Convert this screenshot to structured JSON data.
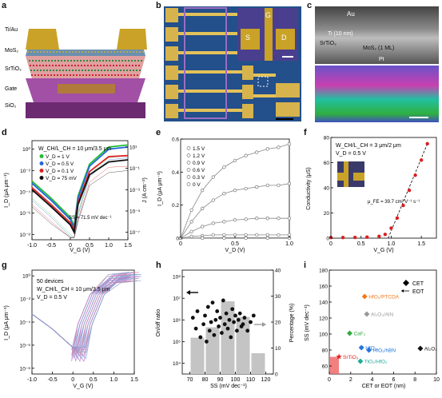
{
  "panel_labels": {
    "a": "a",
    "b": "b",
    "c": "c",
    "d": "d",
    "e": "e",
    "f": "f",
    "g": "g",
    "h": "h",
    "i": "i"
  },
  "panel_a": {
    "layers": [
      "Ti/Au",
      "MoS₂",
      "SrTiO₃",
      "Gate",
      "SiO₂"
    ],
    "colors": {
      "au": "#c9a227",
      "mos2": "#6c8fb0",
      "srtio3": "#d98a8a",
      "gate": "#b07a3c",
      "sio2": "#8a3f8f"
    }
  },
  "panel_b": {
    "inset_labels": {
      "gate": "G",
      "source": "S",
      "drain": "D"
    }
  },
  "panel_c": {
    "labels": {
      "au": "Au",
      "ti": "Ti (10 nm)",
      "srtio3": "SrTiO₃",
      "mos2": "MoS₂ (1 ML)",
      "pt": "Pt"
    }
  },
  "chart_data": [
    {
      "panel": "d",
      "type": "line",
      "xlabel": "V_G (V)",
      "ylabel": "I_D (μA μm⁻¹)",
      "y2label": "J (A cm⁻²)",
      "xlim": [
        -1.0,
        1.5
      ],
      "xticks": [
        "-1.0",
        "-0.5",
        "0",
        "0.5",
        "1.0",
        "1.5"
      ],
      "yticks_left": [
        "10⁰",
        "10⁻²",
        "10⁻⁴",
        "10⁻⁶",
        "10⁻⁸"
      ],
      "yticks_right": [
        "10¹",
        "10⁻¹",
        "10⁻³",
        "10⁻⁵",
        "10⁻⁷"
      ],
      "log_y": true,
      "annotation_geometry": "W_CH/L_CH = 10 μm/3.5 μm",
      "annotation_ss": "SS = 71.5 mV dec⁻¹",
      "legend": [
        "V_D = 1 V",
        "V_D = 0.5 V",
        "V_D = 0.1 V",
        "V_D = 75 mV"
      ],
      "series_colors": [
        "#22bb33",
        "#2266dd",
        "#dd2222",
        "#111111"
      ],
      "series": [
        {
          "name": "V_D = 1 V",
          "x": [
            -1,
            -0.5,
            0,
            0.1,
            0.2,
            0.5,
            1,
            1.5
          ],
          "y": [
            -3,
            -4.6,
            -6.4,
            -7.2,
            -4.4,
            -1.4,
            0.2,
            0.4
          ]
        },
        {
          "name": "V_D = 0.5 V",
          "x": [
            -1,
            -0.5,
            0,
            0.1,
            0.2,
            0.5,
            1,
            1.5
          ],
          "y": [
            -3.2,
            -4.8,
            -6.6,
            -7.4,
            -4.6,
            -1.6,
            0,
            0.2
          ]
        },
        {
          "name": "V_D = 0.1 V",
          "x": [
            -1,
            -0.5,
            0,
            0.1,
            0.2,
            0.5,
            1,
            1.5
          ],
          "y": [
            -3.6,
            -5.2,
            -6.9,
            -7.6,
            -5.0,
            -2.1,
            -0.7,
            -0.6
          ]
        },
        {
          "name": "V_D = 75 mV",
          "x": [
            -1,
            -0.5,
            0,
            0.1,
            0.2,
            0.5,
            1,
            1.5
          ],
          "y": [
            -3.8,
            -5.4,
            -7.1,
            -7.8,
            -5.2,
            -2.4,
            -1.2,
            -1.0
          ]
        }
      ]
    },
    {
      "panel": "e",
      "type": "line",
      "xlabel": "V_D (V)",
      "ylabel": "I_D (μA μm⁻¹)",
      "xlim": [
        0,
        1.0
      ],
      "ylim": [
        0,
        0.6
      ],
      "xticks": [
        "0",
        "0.5",
        "1.0"
      ],
      "yticks": [
        "0",
        "0.2",
        "0.4",
        "0.6"
      ],
      "legend": [
        "1.5 V",
        "1.2 V",
        "0.9 V",
        "0.6 V",
        "0.3 V",
        "0 V"
      ],
      "series": [
        {
          "name": "1.5 V",
          "x": [
            0,
            0.1,
            0.2,
            0.3,
            0.4,
            0.5,
            0.6,
            0.7,
            0.8,
            0.9,
            1.0
          ],
          "y": [
            0,
            0.17,
            0.29,
            0.37,
            0.43,
            0.47,
            0.5,
            0.52,
            0.54,
            0.55,
            0.57
          ]
        },
        {
          "name": "1.2 V",
          "x": [
            0,
            0.1,
            0.2,
            0.3,
            0.4,
            0.5,
            0.6,
            0.7,
            0.8,
            0.9,
            1.0
          ],
          "y": [
            0,
            0.1,
            0.18,
            0.23,
            0.27,
            0.29,
            0.3,
            0.31,
            0.32,
            0.32,
            0.33
          ]
        },
        {
          "name": "0.9 V",
          "x": [
            0,
            0.1,
            0.2,
            0.3,
            0.4,
            0.5,
            0.6,
            0.7,
            0.8,
            0.9,
            1.0
          ],
          "y": [
            0,
            0.04,
            0.07,
            0.09,
            0.1,
            0.11,
            0.115,
            0.12,
            0.12,
            0.12,
            0.12
          ]
        },
        {
          "name": "0.6 V",
          "x": [
            0,
            0.1,
            0.2,
            0.3,
            0.4,
            0.5,
            0.6,
            0.7,
            0.8,
            0.9,
            1.0
          ],
          "y": [
            0,
            0.01,
            0.015,
            0.02,
            0.02,
            0.02,
            0.02,
            0.02,
            0.02,
            0.02,
            0.02
          ]
        },
        {
          "name": "0.3 V",
          "x": [
            0,
            0.2,
            0.4,
            0.6,
            0.8,
            1.0
          ],
          "y": [
            0,
            0.002,
            0.003,
            0.003,
            0.003,
            0.003
          ]
        },
        {
          "name": "0 V",
          "x": [
            0,
            0.2,
            0.4,
            0.6,
            0.8,
            1.0
          ],
          "y": [
            0,
            0,
            0,
            0,
            0,
            0
          ]
        }
      ]
    },
    {
      "panel": "f",
      "type": "scatter",
      "xlabel": "V_G (V)",
      "ylabel": "Conductivity (μS)",
      "xlim": [
        0,
        1.75
      ],
      "ylim": [
        0,
        80
      ],
      "xticks": [
        "0",
        "0.5",
        "1.0",
        "1.5"
      ],
      "yticks": [
        "0",
        "20",
        "40",
        "60",
        "80"
      ],
      "annotation_geometry": "W_CH/L_CH = 3 μm/2 μm",
      "annotation_vd": "V_D = 0.5 V",
      "annotation_mu": "μ_FE = 39.7 cm² V⁻¹ s⁻¹",
      "x": [
        0,
        0.2,
        0.4,
        0.6,
        0.8,
        0.9,
        1.0,
        1.1,
        1.2,
        1.3,
        1.4,
        1.5,
        1.6
      ],
      "y": [
        0.5,
        0.5,
        0.6,
        0.8,
        1.5,
        3,
        8,
        16,
        26,
        38,
        50,
        62,
        75
      ],
      "fit": {
        "x": [
          0.95,
          1.6
        ],
        "y": [
          0,
          75
        ]
      }
    },
    {
      "panel": "g",
      "type": "line",
      "xlabel": "V_G (V)",
      "ylabel": "I_D (μA μm⁻¹)",
      "xlim": [
        -1.0,
        1.5
      ],
      "xticks": [
        "-1.0",
        "-0.5",
        "0",
        "0.5",
        "1.0",
        "1.5"
      ],
      "yticks": [
        "10⁰",
        "10⁻²",
        "10⁻⁴",
        "10⁻⁶",
        "10⁻⁸"
      ],
      "log_y": true,
      "annotation_devices": "50 devices",
      "annotation_geometry": "W_CH/L_CH = 10 μm/3.5 μm",
      "annotation_vd": "V_D = 0.5 V"
    },
    {
      "panel": "h",
      "type": "bar",
      "xlabel": "SS (mV dec⁻¹)",
      "ylabel": "On/off ratio",
      "y2label": "Percentage (%)",
      "xlim": [
        65,
        125
      ],
      "xticks": [
        "70",
        "80",
        "90",
        "100",
        "110",
        "120"
      ],
      "yticks_left": [
        "10⁸",
        "10⁷",
        "10⁶",
        "10⁵",
        "10⁴"
      ],
      "yticks_right": [
        "0",
        "10",
        "20",
        "30",
        "40"
      ],
      "histogram": {
        "bin_centers": [
          75,
          85,
          95,
          105,
          115
        ],
        "percentage": [
          14,
          18,
          28,
          22,
          8
        ]
      },
      "scatter": {
        "x": [
          72,
          74,
          75,
          77,
          79,
          80,
          81,
          82,
          83,
          84,
          85,
          86,
          87,
          88,
          89,
          90,
          91,
          92,
          93,
          94,
          95,
          96,
          97,
          98,
          99,
          100,
          101,
          102,
          103,
          104,
          105,
          106,
          108,
          110,
          112
        ],
        "y": [
          6.1,
          5.6,
          6.4,
          5.2,
          5.8,
          6.2,
          5.0,
          6.6,
          5.5,
          5.9,
          6.8,
          5.3,
          6.0,
          6.4,
          5.7,
          6.1,
          5.4,
          6.9,
          5.8,
          6.3,
          5.6,
          6.0,
          5.2,
          6.5,
          5.9,
          6.2,
          5.5,
          6.0,
          6.3,
          5.7,
          5.8,
          6.1,
          5.5,
          5.9,
          6.2
        ]
      }
    },
    {
      "panel": "i",
      "type": "scatter",
      "xlabel": "CET or EOT (nm)",
      "ylabel": "SS (mV dec⁻¹)",
      "xlim": [
        0,
        10
      ],
      "ylim": [
        50,
        180
      ],
      "xticks": [
        "0",
        "2",
        "4",
        "6",
        "8",
        "10"
      ],
      "yticks": [
        "60",
        "80",
        "100",
        "120",
        "140",
        "160",
        "180"
      ],
      "legend": [
        "CET",
        "EOT"
      ],
      "points": [
        {
          "label": "HfO₂/PTCDA",
          "x": 3.3,
          "y": 147,
          "color": "#f07a20"
        },
        {
          "label": "Al₂O₃/AlN",
          "x": 3.5,
          "y": 125,
          "color": "#999999"
        },
        {
          "label": "CaF₂",
          "x": 1.9,
          "y": 101,
          "color": "#33aa44"
        },
        {
          "label": "HfO₂",
          "x": 3.0,
          "y": 83,
          "color": "#2277dd"
        },
        {
          "label": "HfO₂/hBN",
          "x": 3.7,
          "y": 80,
          "color": "#2277dd"
        },
        {
          "label": "TiO₂/HfO₂",
          "x": 2.9,
          "y": 66,
          "color": "#22aa99"
        },
        {
          "label": "SrTiO₃",
          "x": 0.9,
          "y": 71.5,
          "color": "#e02020"
        },
        {
          "label": "Al₂O₃",
          "x": 8.5,
          "y": 82,
          "color": "#111111"
        }
      ]
    }
  ]
}
